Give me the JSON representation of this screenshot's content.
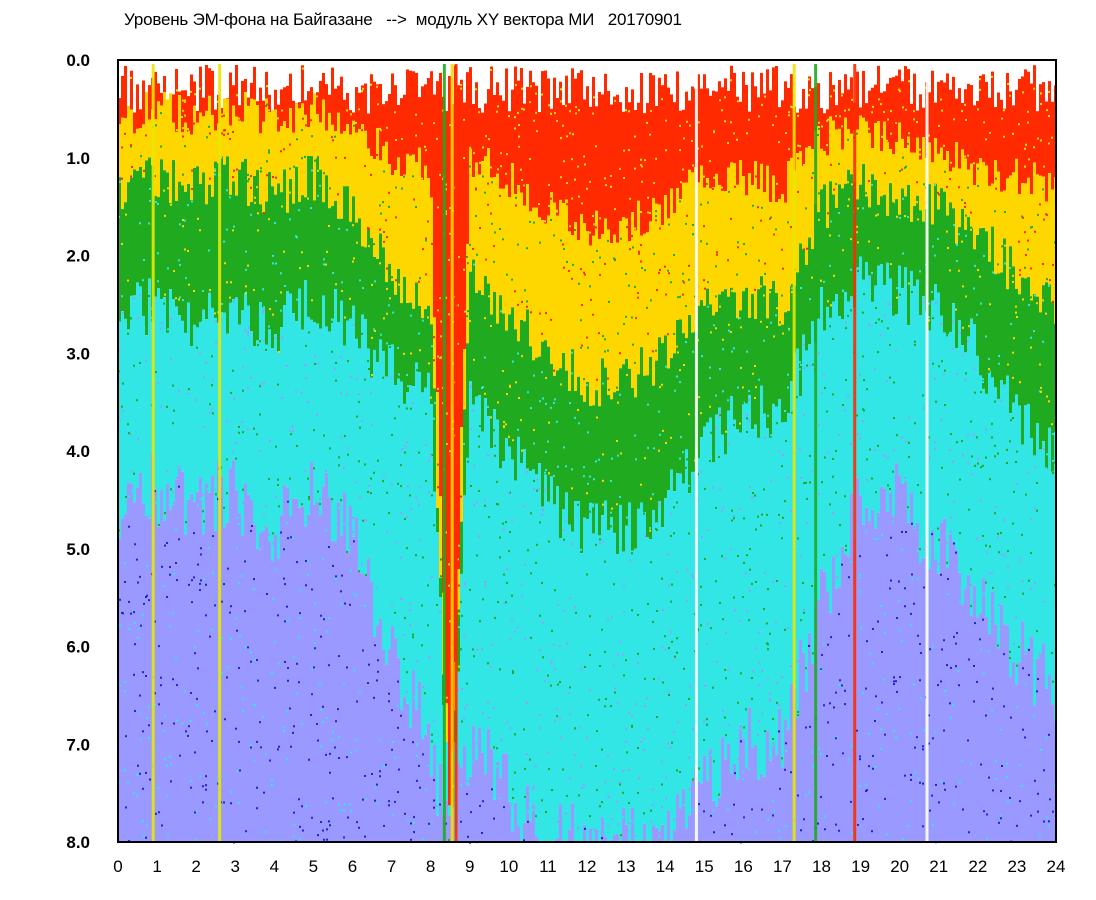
{
  "chart_data": {
    "type": "heatmap",
    "title": "Уровень ЭМ-фона на Байгазане   -->  модуль XY вектора МИ   20170901",
    "xlabel": "",
    "ylabel": "",
    "xlim": [
      0,
      24
    ],
    "ylim": [
      8.0,
      0.0
    ],
    "y_axis_inverted": true,
    "x_ticks": [
      "0",
      "1",
      "2",
      "3",
      "4",
      "5",
      "6",
      "7",
      "8",
      "9",
      "10",
      "11",
      "12",
      "13",
      "14",
      "15",
      "16",
      "17",
      "18",
      "19",
      "20",
      "21",
      "22",
      "23",
      "24"
    ],
    "y_ticks": [
      "0.0",
      "1.0",
      "2.0",
      "3.0",
      "4.0",
      "5.0",
      "6.0",
      "7.0",
      "8.0"
    ],
    "grid": false,
    "color_scale": [
      "#ff2a00",
      "#ffd700",
      "#e8e800",
      "#1faa1f",
      "#33e6e6",
      "#9999ff",
      "#2222dd"
    ],
    "color_scale_meaning": [
      "very high",
      "high",
      "high",
      "medium",
      "low",
      "low",
      "very low"
    ],
    "band_boundaries": {
      "hours": [
        0,
        1,
        2,
        3,
        4,
        5,
        6,
        7,
        8,
        8.5,
        9,
        10,
        11,
        12,
        13,
        14,
        15,
        16,
        17,
        18,
        19,
        20,
        21,
        22,
        23,
        24
      ],
      "red_to_yellow": [
        0.6,
        0.5,
        0.6,
        0.5,
        0.6,
        0.5,
        0.6,
        1.0,
        1.1,
        8.0,
        1.0,
        1.2,
        1.5,
        1.7,
        1.7,
        1.5,
        1.2,
        1.2,
        1.3,
        0.8,
        0.7,
        0.8,
        0.9,
        1.1,
        1.2,
        1.3
      ],
      "yellow_to_green": [
        1.3,
        1.2,
        1.3,
        1.2,
        1.4,
        1.2,
        1.5,
        2.2,
        2.5,
        8.0,
        2.2,
        2.6,
        3.0,
        3.3,
        3.3,
        3.0,
        2.6,
        2.4,
        2.5,
        1.5,
        1.3,
        1.4,
        1.5,
        1.8,
        2.2,
        2.5
      ],
      "green_to_cyan": [
        2.6,
        2.5,
        2.7,
        2.5,
        2.8,
        2.4,
        2.8,
        3.2,
        3.5,
        8.0,
        3.5,
        4.0,
        4.5,
        4.8,
        4.8,
        4.5,
        4.0,
        3.6,
        3.6,
        2.6,
        2.2,
        2.4,
        2.5,
        3.0,
        3.6,
        4.0
      ],
      "cyan_to_blue": [
        4.5,
        4.4,
        4.6,
        4.4,
        4.8,
        4.4,
        4.9,
        6.0,
        7.0,
        8.0,
        7.0,
        7.5,
        8.0,
        8.0,
        8.0,
        8.0,
        7.5,
        7.0,
        7.0,
        5.5,
        4.5,
        4.5,
        5.0,
        5.5,
        6.0,
        6.5
      ]
    },
    "vertical_streaks": [
      {
        "hour": 0.9,
        "color": "#e8e800"
      },
      {
        "hour": 2.6,
        "color": "#e8e800"
      },
      {
        "hour": 8.35,
        "color": "#1faa1f"
      },
      {
        "hour": 8.55,
        "color": "#ffd700"
      },
      {
        "hour": 8.65,
        "color": "#ff2a00"
      },
      {
        "hour": 14.8,
        "color": "#ffffff"
      },
      {
        "hour": 17.3,
        "color": "#e8e800"
      },
      {
        "hour": 17.85,
        "color": "#1faa1f"
      },
      {
        "hour": 18.85,
        "color": "#ff2a00"
      },
      {
        "hour": 20.7,
        "color": "#ffffff"
      }
    ]
  }
}
